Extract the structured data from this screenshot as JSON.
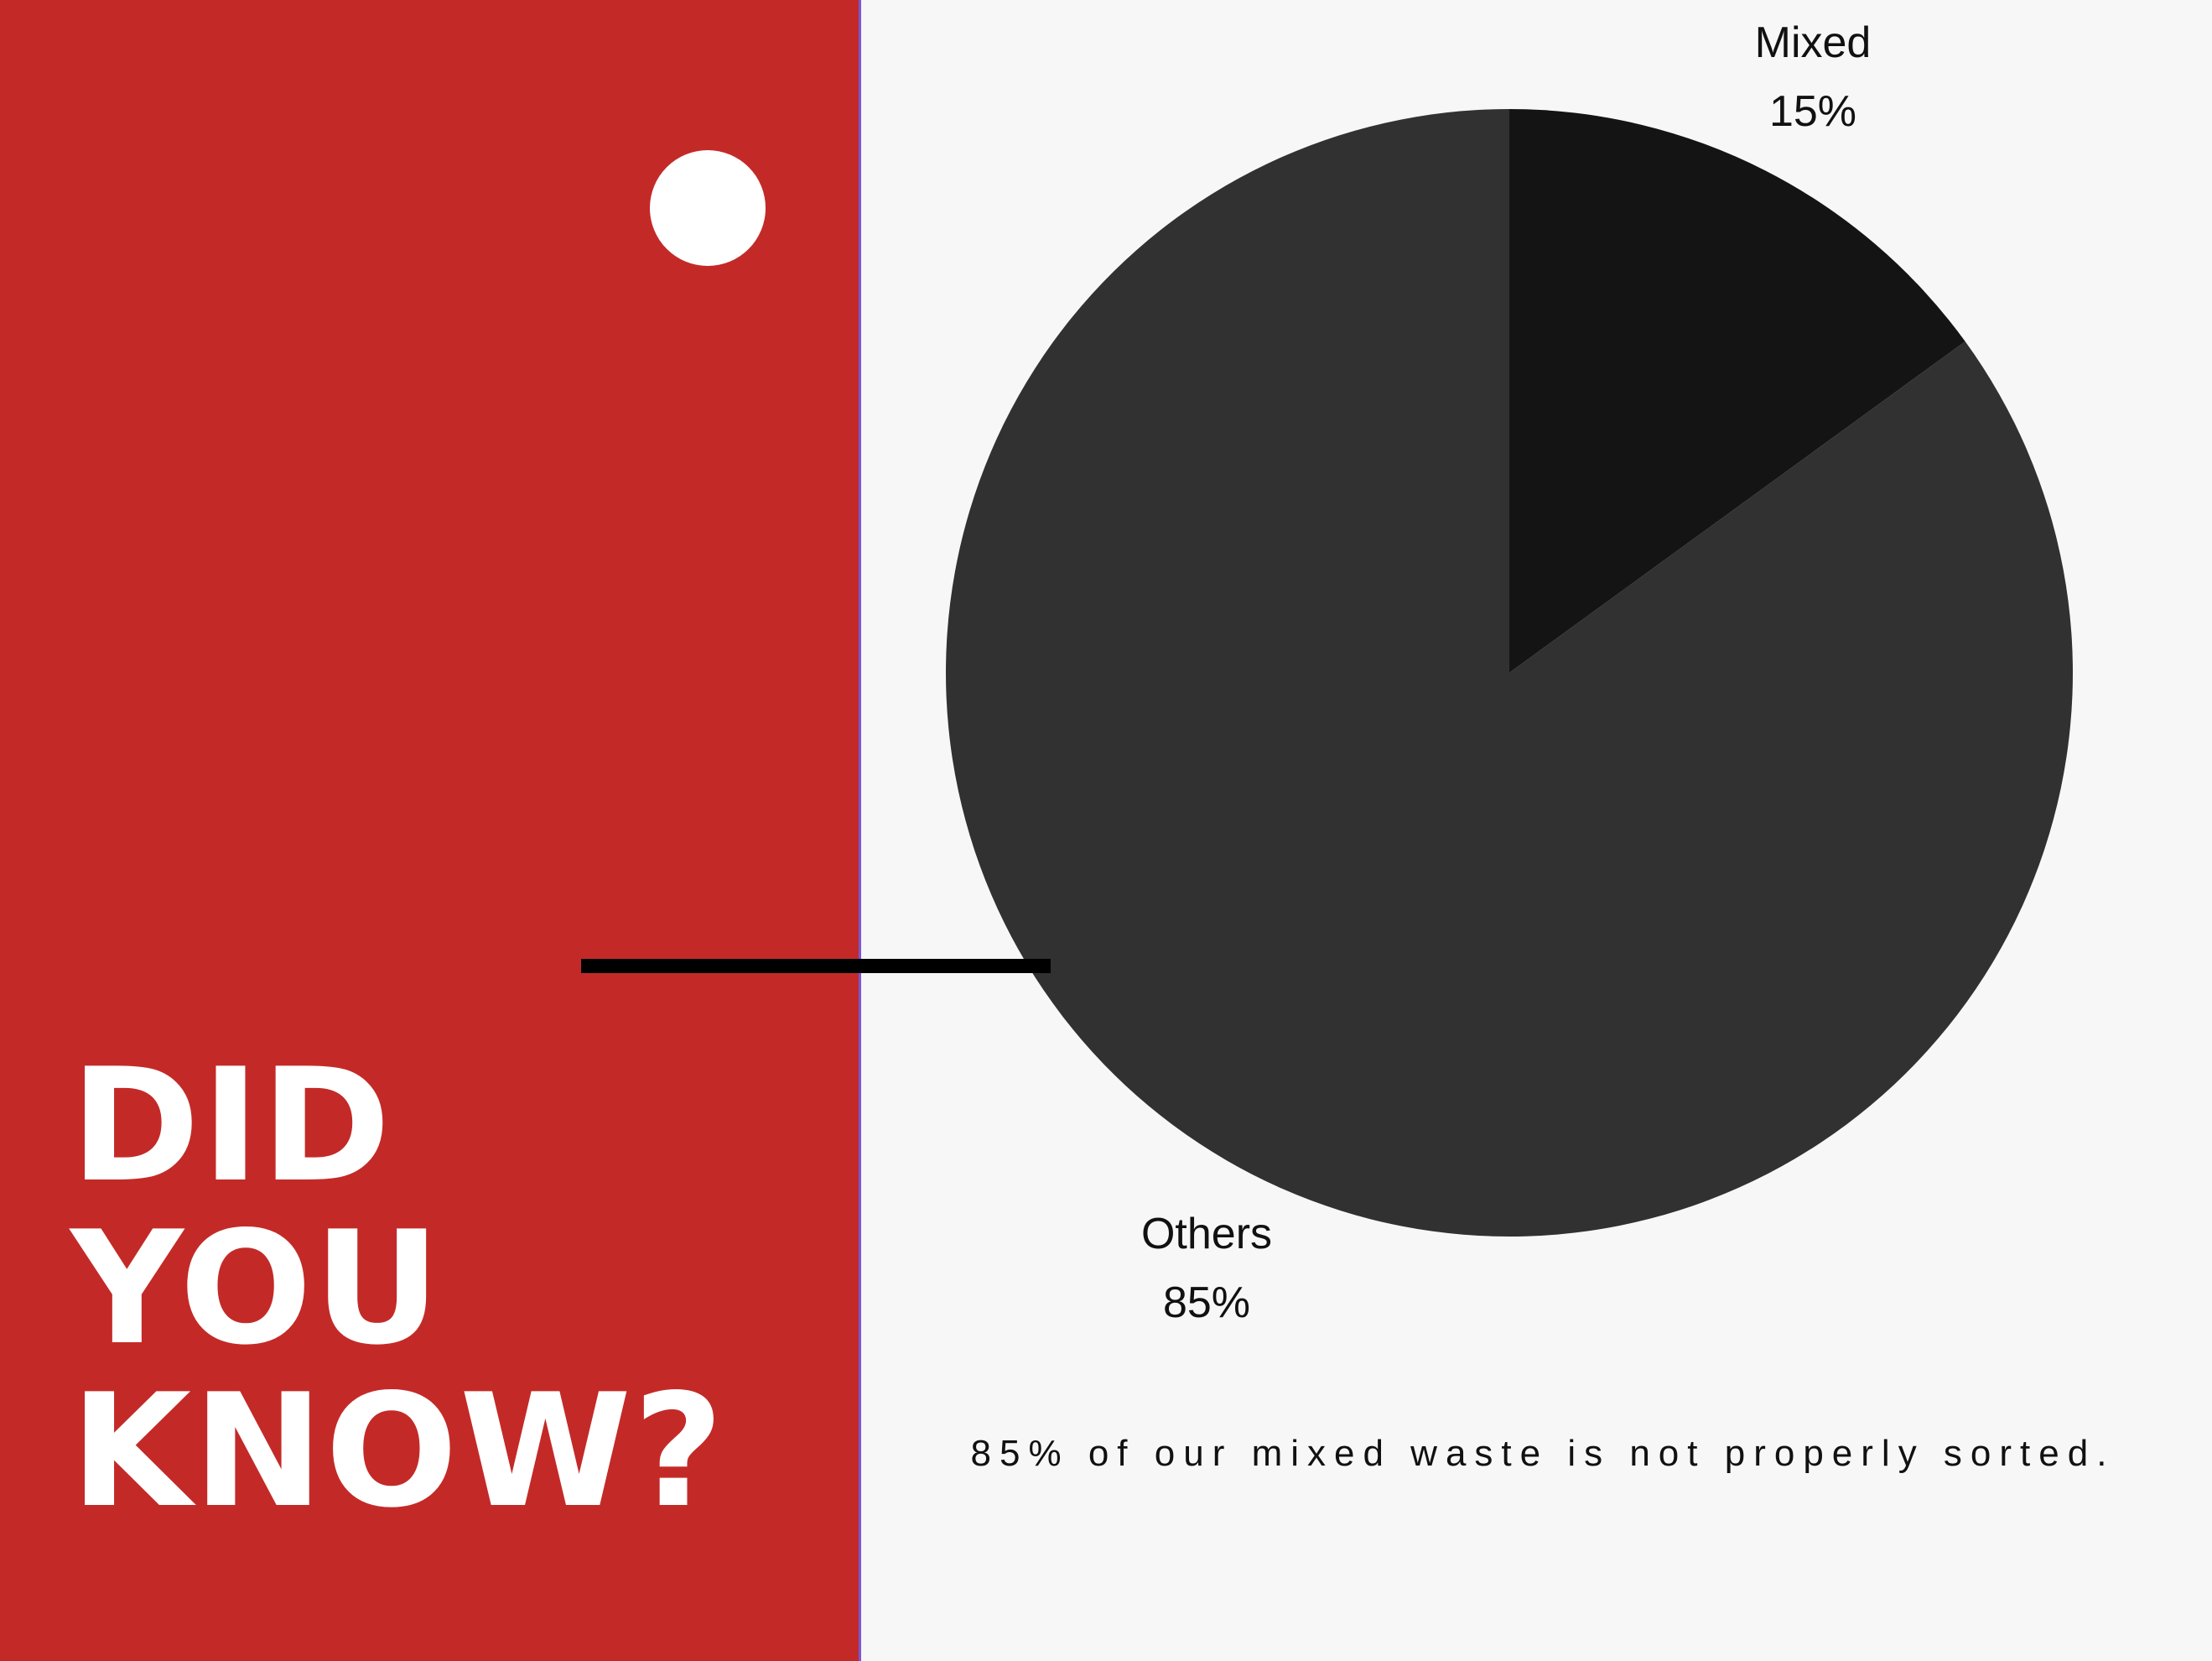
{
  "headline": {
    "line1": "DID",
    "line2": "YOU",
    "line3": "KNOW?"
  },
  "caption": "85% of our mixed waste is not properly sorted.",
  "colors": {
    "panel": "#c32a27",
    "background": "#f7f7f7"
  },
  "chart_data": {
    "type": "pie",
    "title": "",
    "slices": [
      {
        "label": "Mixed",
        "value": 15,
        "value_label": "15%",
        "color": "#131413"
      },
      {
        "label": "Others",
        "value": 85,
        "value_label": "85%",
        "color": "#313131"
      }
    ],
    "start_angle": "12 o'clock",
    "direction": "clockwise"
  }
}
